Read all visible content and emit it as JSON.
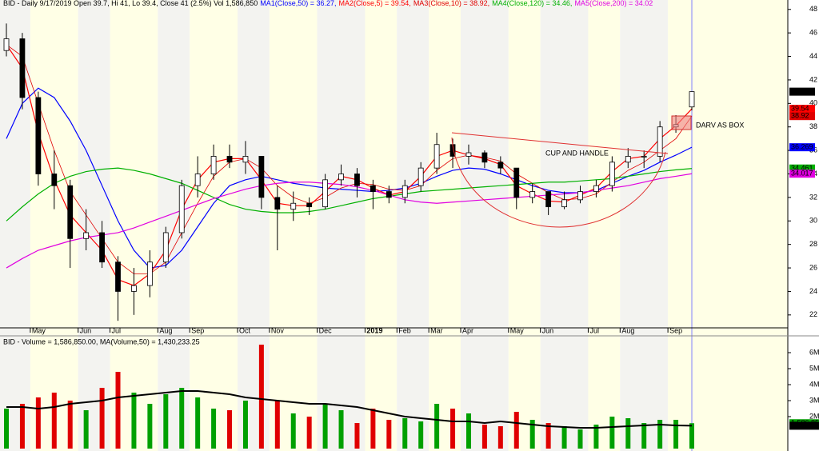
{
  "chart_data": {
    "type": "candlestick",
    "title": "BID - Daily 9/17/2019 Open 39.7, Hi 41, Lo 39.4, Close 41 (2.5%) Vol 1,586,850",
    "categories": [
      null,
      null,
      "May",
      null,
      null,
      "Jun",
      null,
      "Jul",
      null,
      null,
      "Aug",
      null,
      "Sep",
      null,
      null,
      "Oct",
      null,
      "Nov",
      null,
      null,
      "Dec",
      null,
      null,
      "2019",
      null,
      "Feb",
      null,
      "Mar",
      null,
      "Apr",
      null,
      null,
      "May",
      null,
      "Jun",
      null,
      null,
      "Jul",
      null,
      "Aug",
      null,
      null,
      "Sep",
      null
    ],
    "open": [
      44.5,
      45.5,
      40.5,
      34,
      33,
      28.5,
      29,
      26.5,
      24,
      24.5,
      26.5,
      29,
      33,
      34,
      35.5,
      35,
      35.5,
      32,
      31,
      31.5,
      31.2,
      33.5,
      34,
      33,
      32.5,
      32,
      33,
      34.5,
      36.5,
      35.5,
      35.8,
      35,
      34.5,
      32,
      32.5,
      31.2,
      31.8,
      32.5,
      33,
      35,
      35.5,
      35.5,
      38,
      39.7
    ],
    "high": [
      46.8,
      46,
      41,
      36,
      33.5,
      31,
      30,
      27,
      26,
      27.5,
      29.5,
      33.5,
      35.5,
      36.5,
      36.5,
      36.8,
      35.5,
      33,
      32.5,
      32,
      34,
      34.8,
      34.5,
      33.5,
      33,
      33.5,
      35,
      37.5,
      37,
      36.5,
      36,
      35.5,
      34.5,
      33.2,
      32.5,
      32.5,
      33,
      33.5,
      35.5,
      36.2,
      36,
      38.5,
      39,
      41
    ],
    "low": [
      44,
      39.5,
      33,
      31,
      26,
      27.5,
      26,
      21.5,
      22,
      23.5,
      26,
      28.5,
      32,
      33.5,
      34.5,
      34,
      31,
      27.5,
      30,
      30.5,
      31,
      33,
      32,
      31,
      31.5,
      31.5,
      32.5,
      34,
      34.5,
      34.8,
      34.5,
      34,
      31,
      31.5,
      30.5,
      31,
      31.5,
      32,
      32.5,
      34.5,
      34.5,
      35,
      37.5,
      39.4
    ],
    "close": [
      45.5,
      40.5,
      34,
      33,
      28.5,
      29,
      26.5,
      24,
      24.5,
      26.5,
      29,
      33,
      34,
      35.5,
      35,
      35.5,
      32,
      31,
      31.5,
      31.2,
      33.5,
      34,
      33,
      32.5,
      32,
      33,
      34.5,
      36.5,
      35.5,
      35.8,
      35,
      34.5,
      32,
      32.5,
      31.2,
      31.8,
      32.5,
      33,
      35,
      35.5,
      35.5,
      38,
      38.2,
      41
    ],
    "volume": [
      2500000,
      2800000,
      3200000,
      3500000,
      3000000,
      2400000,
      3800000,
      4800000,
      3500000,
      2800000,
      3400000,
      3800000,
      3200000,
      2500000,
      2400000,
      3000000,
      6500000,
      3000000,
      2200000,
      2000000,
      2800000,
      2400000,
      1600000,
      2500000,
      1800000,
      1900000,
      1700000,
      2800000,
      2500000,
      2200000,
      1500000,
      1400000,
      2300000,
      1800000,
      1600000,
      1400000,
      1200000,
      1500000,
      2000000,
      1900000,
      1600000,
      1800000,
      1800000,
      1586850
    ],
    "volume_ma": [
      2600000,
      2600000,
      2500000,
      2600000,
      2800000,
      2900000,
      3000000,
      3200000,
      3300000,
      3400000,
      3500000,
      3600000,
      3600000,
      3500000,
      3400000,
      3200000,
      3100000,
      3000000,
      2900000,
      2800000,
      2800000,
      2700000,
      2600000,
      2400000,
      2200000,
      2000000,
      1900000,
      1800000,
      1700000,
      1700000,
      1600000,
      1700000,
      1600000,
      1500000,
      1400000,
      1350000,
      1300000,
      1300000,
      1350000,
      1400000,
      1450000,
      1500000,
      1450000,
      1430233.25
    ],
    "volume_title": "BID - Volume = 1,586,850.00, MA(Volume,50) = 1,430,233.25",
    "volume_color_up": "#00a000",
    "volume_color_down": "#e00000",
    "volume_ma_color": "#000000",
    "series": [
      {
        "name": "MA1(Close,50) = 36.27,",
        "color": "#0000ff",
        "values": [
          37,
          40,
          41.3,
          40.5,
          38.5,
          36,
          33,
          30,
          27.5,
          26,
          26.2,
          27.5,
          29.5,
          31.5,
          33,
          33.5,
          33.8,
          33.5,
          33.2,
          33,
          32.8,
          32.7,
          32.6,
          32.5,
          32.6,
          32.8,
          33.2,
          33.8,
          34.3,
          34.5,
          34.4,
          34,
          33.5,
          33,
          32.6,
          32.4,
          32.4,
          32.6,
          33.2,
          33.8,
          34.3,
          35,
          35.6,
          36.269
        ]
      },
      {
        "name": "MA2(Close,5) = 39.54,",
        "color": "#ff0000",
        "values": [
          45,
          43,
          37.5,
          33.5,
          30.5,
          29,
          27.5,
          25,
          24.5,
          25.5,
          27.5,
          31,
          33.5,
          35,
          35.3,
          35.3,
          33.5,
          31.5,
          31.3,
          31.3,
          32.5,
          33.8,
          33.5,
          32.8,
          32.2,
          32.5,
          33.8,
          35.5,
          36,
          35.6,
          35.3,
          34.8,
          33,
          32.3,
          31.7,
          31.6,
          32.2,
          32.8,
          34.2,
          35.3,
          35.5,
          37,
          38.1,
          39.54
        ]
      },
      {
        "name": "MA3(Close,10) = 38.92,",
        "color": "#e00000",
        "values": [
          45,
          44,
          40,
          36,
          32.5,
          30.5,
          28.5,
          26.5,
          25.5,
          25.5,
          26.5,
          29,
          31.5,
          33.8,
          35,
          35.3,
          34.5,
          33,
          32,
          31.5,
          32,
          32.8,
          33.2,
          33.1,
          32.7,
          32.6,
          33,
          34.3,
          35.3,
          35.6,
          35.4,
          35.1,
          34,
          33.2,
          32.4,
          31.8,
          31.9,
          32.3,
          33.3,
          34.3,
          35,
          36,
          37,
          38.92
        ]
      },
      {
        "name": "MA4(Close,120) = 34.46,",
        "color": "#00b000",
        "values": [
          30,
          31.2,
          32.3,
          33.2,
          33.8,
          34.2,
          34.4,
          34.5,
          34.3,
          34,
          33.6,
          33.2,
          32.6,
          32,
          31.4,
          31,
          30.8,
          30.7,
          30.7,
          30.8,
          31,
          31.3,
          31.6,
          31.9,
          32.1,
          32.3,
          32.5,
          32.6,
          32.7,
          32.8,
          32.9,
          33,
          33.1,
          33.2,
          33.3,
          33.3,
          33.4,
          33.5,
          33.6,
          33.8,
          34,
          34.2,
          34.35,
          34.461
        ]
      },
      {
        "name": "MA5(Close,200) = 34.02",
        "color": "#e000e0",
        "values": [
          26,
          26.8,
          27.5,
          27.9,
          28.3,
          28.6,
          28.8,
          29,
          29.4,
          29.9,
          30.4,
          30.9,
          31.4,
          31.9,
          32.3,
          32.7,
          33,
          33.2,
          33.3,
          33.3,
          33.2,
          33.1,
          32.9,
          32.6,
          32.2,
          31.8,
          31.6,
          31.5,
          31.6,
          31.7,
          31.8,
          31.9,
          32,
          32.1,
          32.2,
          32.3,
          32.4,
          32.6,
          32.8,
          33,
          33.3,
          33.6,
          33.8,
          34.017
        ]
      }
    ],
    "ylim": [
      20.9,
      48.8
    ],
    "yticks": [
      22,
      24,
      26,
      28,
      30,
      32,
      34,
      36,
      38,
      40,
      42,
      44,
      46,
      48
    ],
    "volume_ylim": [
      0,
      7000000
    ],
    "volume_yticks": [
      {
        "value": 2000000,
        "label": "2M"
      },
      {
        "value": 3000000,
        "label": "3M"
      },
      {
        "value": 4000000,
        "label": "4M"
      },
      {
        "value": 5000000,
        "label": "5M"
      },
      {
        "value": 6000000,
        "label": "6M"
      }
    ],
    "annotations": [
      {
        "text": "CUP AND HANDLE",
        "color": "#e00000"
      },
      {
        "text": "DARV AS BOX",
        "color": "#e00000"
      }
    ]
  }
}
